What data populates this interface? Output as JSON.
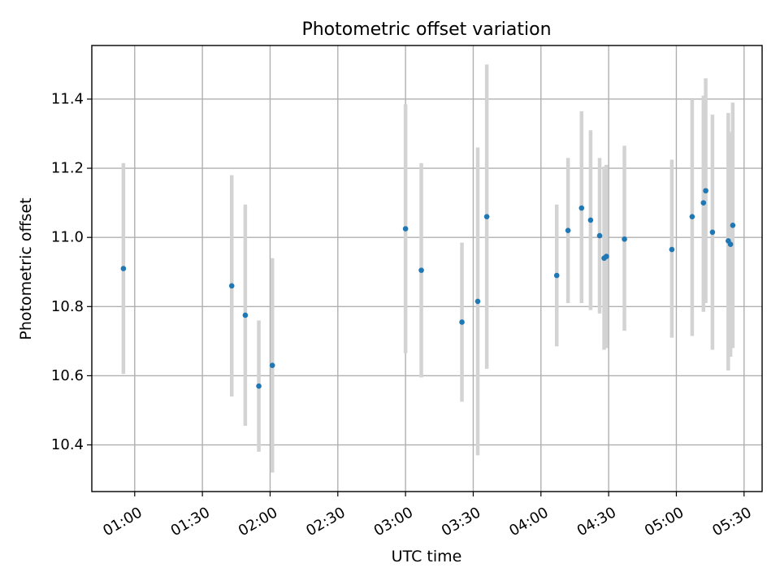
{
  "chart_data": {
    "type": "scatter",
    "title": "Photometric offset variation",
    "xlabel": "UTC time",
    "ylabel": "Photometric offset",
    "xlim": [
      "00:41",
      "05:38"
    ],
    "ylim": [
      10.265,
      11.555
    ],
    "xticks": [
      "01:00",
      "01:30",
      "02:00",
      "02:30",
      "03:00",
      "03:30",
      "04:00",
      "04:30",
      "05:00",
      "05:30"
    ],
    "yticks": [
      "10.4",
      "10.6",
      "10.8",
      "11.0",
      "11.2",
      "11.4"
    ],
    "grid": true,
    "point_color": "#1f77b4",
    "errorbar_color": "#d3d3d3",
    "points": [
      {
        "x": "00:55",
        "y": 10.91,
        "yerr_low": 10.605,
        "yerr_high": 11.215
      },
      {
        "x": "01:43",
        "y": 10.86,
        "yerr_low": 10.54,
        "yerr_high": 11.18
      },
      {
        "x": "01:49",
        "y": 10.775,
        "yerr_low": 10.455,
        "yerr_high": 11.095
      },
      {
        "x": "01:55",
        "y": 10.57,
        "yerr_low": 10.38,
        "yerr_high": 10.76
      },
      {
        "x": "02:01",
        "y": 10.63,
        "yerr_low": 10.32,
        "yerr_high": 10.94
      },
      {
        "x": "03:00",
        "y": 11.025,
        "yerr_low": 10.665,
        "yerr_high": 11.385
      },
      {
        "x": "03:07",
        "y": 10.905,
        "yerr_low": 10.595,
        "yerr_high": 11.215
      },
      {
        "x": "03:25",
        "y": 10.755,
        "yerr_low": 10.525,
        "yerr_high": 10.985
      },
      {
        "x": "03:32",
        "y": 10.815,
        "yerr_low": 10.37,
        "yerr_high": 11.26
      },
      {
        "x": "03:36",
        "y": 11.06,
        "yerr_low": 10.62,
        "yerr_high": 11.5
      },
      {
        "x": "04:07",
        "y": 10.89,
        "yerr_low": 10.685,
        "yerr_high": 11.095
      },
      {
        "x": "04:12",
        "y": 11.02,
        "yerr_low": 10.81,
        "yerr_high": 11.23
      },
      {
        "x": "04:18",
        "y": 11.085,
        "yerr_low": 10.81,
        "yerr_high": 11.365
      },
      {
        "x": "04:22",
        "y": 11.05,
        "yerr_low": 10.79,
        "yerr_high": 11.31
      },
      {
        "x": "04:26",
        "y": 11.005,
        "yerr_low": 10.78,
        "yerr_high": 11.23
      },
      {
        "x": "04:28",
        "y": 10.94,
        "yerr_low": 10.675,
        "yerr_high": 11.205
      },
      {
        "x": "04:29",
        "y": 10.945,
        "yerr_low": 10.68,
        "yerr_high": 11.21
      },
      {
        "x": "04:37",
        "y": 10.995,
        "yerr_low": 10.73,
        "yerr_high": 11.265
      },
      {
        "x": "04:58",
        "y": 10.965,
        "yerr_low": 10.71,
        "yerr_high": 11.225
      },
      {
        "x": "05:07",
        "y": 11.06,
        "yerr_low": 10.715,
        "yerr_high": 11.4
      },
      {
        "x": "05:12",
        "y": 11.1,
        "yerr_low": 10.785,
        "yerr_high": 11.41
      },
      {
        "x": "05:13",
        "y": 11.135,
        "yerr_low": 10.81,
        "yerr_high": 11.46
      },
      {
        "x": "05:16",
        "y": 11.015,
        "yerr_low": 10.675,
        "yerr_high": 11.355
      },
      {
        "x": "05:23",
        "y": 10.99,
        "yerr_low": 10.615,
        "yerr_high": 11.36
      },
      {
        "x": "05:24",
        "y": 10.98,
        "yerr_low": 10.655,
        "yerr_high": 11.305
      },
      {
        "x": "05:25",
        "y": 11.035,
        "yerr_low": 10.68,
        "yerr_high": 11.39
      }
    ]
  }
}
